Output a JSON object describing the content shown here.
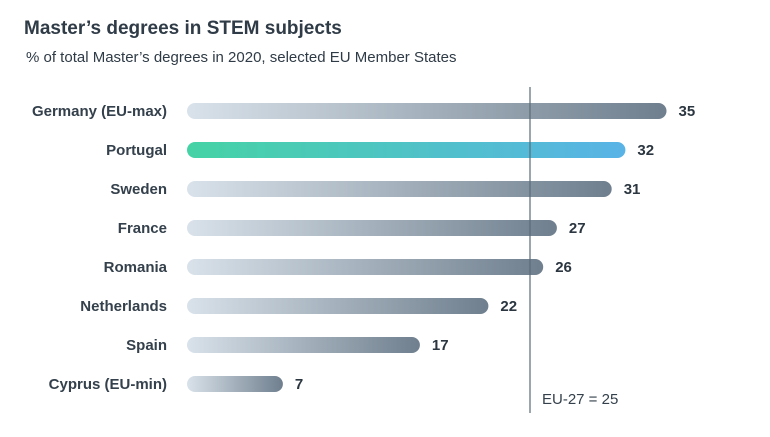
{
  "chart_data": {
    "type": "bar",
    "orientation": "horizontal",
    "title": "Master’s degrees in STEM subjects",
    "subtitle": "% of total Master’s degrees in 2020, selected EU Member States",
    "categories": [
      "Germany (EU-max)",
      "Portugal",
      "Sweden",
      "France",
      "Romania",
      "Netherlands",
      "Spain",
      "Cyprus (EU-min)"
    ],
    "values": [
      35,
      32,
      31,
      27,
      26,
      22,
      17,
      7
    ],
    "highlight": "Portugal",
    "reference_line": {
      "label": "EU-27 = 25",
      "value": 25
    },
    "xlim": [
      0,
      35
    ],
    "xlabel": "",
    "ylabel": "",
    "grid": false,
    "legend": "none"
  },
  "colors": {
    "bar_gradient_start": "#d9e2ea",
    "bar_gradient_end": "#6f7f8e",
    "highlight_gradient_start": "#45d3a5",
    "highlight_gradient_end": "#59b3e6",
    "reference_line": "#5b6a78",
    "text": "#2f3b46"
  }
}
